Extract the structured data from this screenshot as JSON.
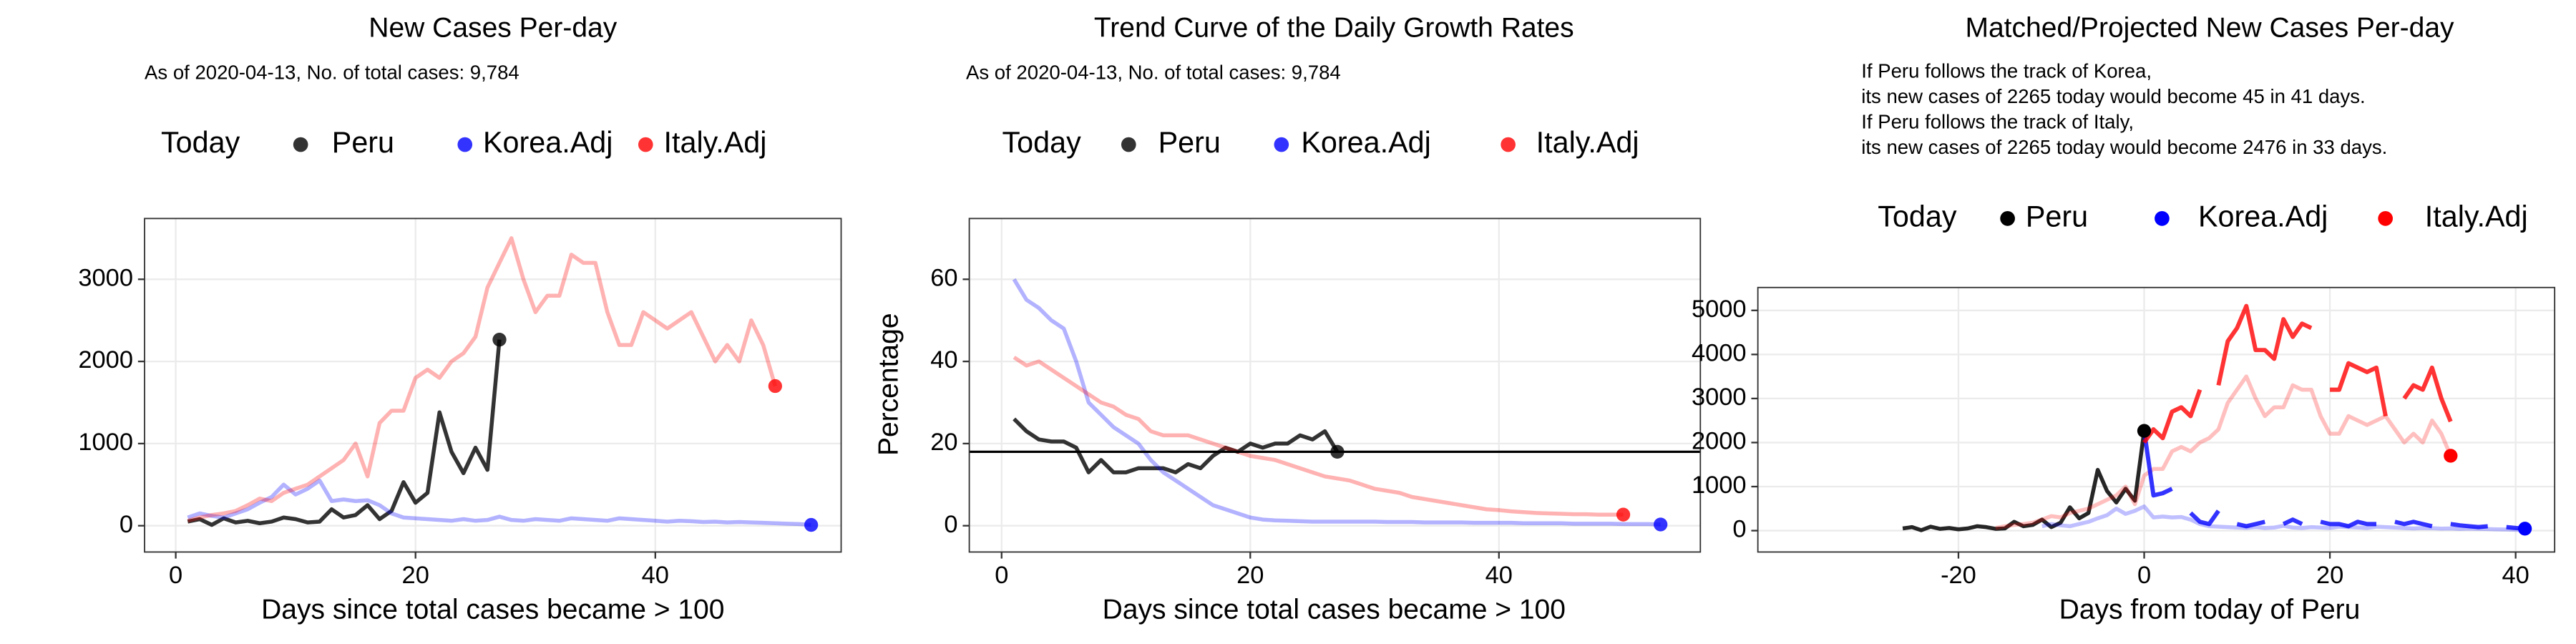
{
  "chart_data": [
    {
      "type": "line",
      "title": "New Cases Per-day",
      "subtitle": "As of 2020-04-13, No. of total cases: 9,784",
      "xlabel": "Days since total cases became > 100",
      "legend_title": "Today",
      "xlim": [
        -2.6,
        55.5
      ],
      "xticks": [
        0,
        20,
        40
      ],
      "ylim": [
        -320,
        3740
      ],
      "yticks": [
        0,
        1000,
        2000,
        3000
      ],
      "grid": true,
      "series": [
        {
          "name": "Peru",
          "color": "#000000",
          "opacity": 0.8,
          "marker_opacity": 0.8,
          "marker": "values",
          "x": [
            1,
            2,
            3,
            4,
            5,
            6,
            7,
            8,
            9,
            10,
            11,
            12,
            13,
            14,
            15,
            16,
            17,
            18,
            19,
            20,
            21,
            22,
            23,
            24,
            25,
            26,
            27
          ],
          "values": [
            50,
            80,
            10,
            90,
            40,
            60,
            30,
            50,
            100,
            80,
            40,
            50,
            200,
            100,
            130,
            250,
            80,
            180,
            530,
            280,
            400,
            1380,
            900,
            640,
            950,
            680,
            2265
          ]
        },
        {
          "name": "Korea.Adj",
          "color": "#0000ff",
          "opacity": 0.3,
          "marker_opacity": 0.8,
          "marker": "values",
          "x": [
            1,
            2,
            3,
            4,
            5,
            6,
            7,
            8,
            9,
            10,
            11,
            12,
            13,
            14,
            15,
            16,
            17,
            18,
            19,
            20,
            21,
            22,
            23,
            24,
            25,
            26,
            27,
            28,
            29,
            30,
            31,
            32,
            33,
            34,
            35,
            36,
            37,
            38,
            39,
            40,
            41,
            42,
            43,
            44,
            45,
            46,
            47,
            48,
            49,
            50,
            51,
            52,
            53
          ],
          "values": [
            100,
            150,
            120,
            100,
            150,
            200,
            280,
            350,
            500,
            380,
            450,
            550,
            300,
            320,
            300,
            310,
            250,
            150,
            100,
            90,
            80,
            70,
            60,
            80,
            60,
            70,
            110,
            70,
            60,
            80,
            70,
            60,
            90,
            80,
            70,
            60,
            90,
            80,
            70,
            60,
            50,
            60,
            55,
            45,
            50,
            40,
            45,
            40,
            35,
            30,
            25,
            20,
            10
          ]
        },
        {
          "name": "Italy.Adj",
          "color": "#ff0000",
          "opacity": 0.3,
          "marker_opacity": 0.8,
          "marker": "values",
          "x": [
            1,
            2,
            3,
            4,
            5,
            6,
            7,
            8,
            9,
            10,
            11,
            12,
            13,
            14,
            15,
            16,
            17,
            18,
            19,
            20,
            21,
            22,
            23,
            24,
            25,
            26,
            27,
            28,
            29,
            30,
            31,
            32,
            33,
            34,
            35,
            36,
            37,
            38,
            39,
            40,
            41,
            42,
            43,
            44,
            45,
            46,
            47,
            48,
            49,
            50
          ],
          "values": [
            60,
            100,
            130,
            150,
            180,
            250,
            330,
            300,
            400,
            450,
            500,
            600,
            700,
            800,
            1000,
            600,
            1250,
            1400,
            1400,
            1800,
            1900,
            1800,
            2000,
            2100,
            2300,
            2900,
            3200,
            3500,
            3000,
            2600,
            2800,
            2800,
            3300,
            3200,
            3200,
            2600,
            2200,
            2200,
            2600,
            2500,
            2400,
            2500,
            2600,
            2300,
            2000,
            2200,
            2000,
            2500,
            2200,
            1700
          ]
        }
      ]
    },
    {
      "type": "line",
      "title": "Trend Curve of the Daily Growth Rates",
      "subtitle": "As of 2020-04-13, No. of total cases: 9,784",
      "xlabel": "Days since total cases became > 100",
      "ylabel": "Percentage",
      "legend_title": "Today",
      "xlim": [
        -2.6,
        56.2
      ],
      "xticks": [
        0,
        20,
        40
      ],
      "ylim": [
        -6.4,
        74.8
      ],
      "yticks": [
        0,
        20,
        40,
        60
      ],
      "grid": true,
      "hline": 18,
      "series": [
        {
          "name": "Peru",
          "color": "#000000",
          "opacity": 0.8,
          "marker_opacity": 0.8,
          "marker": "values",
          "x": [
            1,
            2,
            3,
            4,
            5,
            6,
            7,
            8,
            9,
            10,
            11,
            12,
            13,
            14,
            15,
            16,
            17,
            18,
            19,
            20,
            21,
            22,
            23,
            24,
            25,
            26,
            27
          ],
          "values": [
            26,
            23,
            21,
            20.5,
            20.5,
            19,
            13,
            16,
            13,
            13,
            14,
            14,
            14,
            13,
            15,
            14,
            17,
            19,
            18,
            20,
            19,
            20,
            20,
            22,
            21,
            23,
            18
          ]
        },
        {
          "name": "Korea.Adj",
          "color": "#0000ff",
          "opacity": 0.3,
          "marker_opacity": 0.8,
          "marker": "values",
          "x": [
            1,
            2,
            3,
            4,
            5,
            6,
            7,
            8,
            9,
            10,
            11,
            12,
            13,
            14,
            15,
            16,
            17,
            18,
            19,
            20,
            21,
            22,
            23,
            24,
            25,
            26,
            27,
            28,
            29,
            30,
            31,
            32,
            33,
            34,
            35,
            36,
            37,
            38,
            39,
            40,
            41,
            42,
            43,
            44,
            45,
            46,
            47,
            48,
            49,
            50,
            51,
            52,
            53
          ],
          "values": [
            60,
            55,
            53,
            50,
            48,
            40,
            30,
            27,
            24,
            22,
            20,
            16,
            13,
            11,
            9,
            7,
            5,
            4,
            3,
            2,
            1.5,
            1.3,
            1.2,
            1.1,
            1,
            1,
            1,
            1,
            1,
            1,
            0.9,
            0.9,
            0.9,
            0.8,
            0.8,
            0.8,
            0.8,
            0.7,
            0.7,
            0.7,
            0.7,
            0.6,
            0.6,
            0.6,
            0.6,
            0.5,
            0.5,
            0.5,
            0.5,
            0.4,
            0.4,
            0.4,
            0.3
          ]
        },
        {
          "name": "Italy.Adj",
          "color": "#ff0000",
          "opacity": 0.3,
          "marker_opacity": 0.8,
          "marker": "values",
          "x": [
            1,
            2,
            3,
            4,
            5,
            6,
            7,
            8,
            9,
            10,
            11,
            12,
            13,
            14,
            15,
            16,
            17,
            18,
            19,
            20,
            21,
            22,
            23,
            24,
            25,
            26,
            27,
            28,
            29,
            30,
            31,
            32,
            33,
            34,
            35,
            36,
            37,
            38,
            39,
            40,
            41,
            42,
            43,
            44,
            45,
            46,
            47,
            48,
            49,
            50
          ],
          "values": [
            41,
            39,
            40,
            38,
            36,
            34,
            32,
            30,
            29,
            27,
            26,
            23,
            22,
            22,
            22,
            21,
            20,
            19,
            18,
            17,
            16.5,
            16,
            15,
            14,
            13,
            12,
            11.5,
            11,
            10,
            9,
            8.5,
            8,
            7,
            6.5,
            6,
            5.5,
            5,
            4.5,
            4,
            3.8,
            3.5,
            3.3,
            3.1,
            3,
            2.9,
            2.8,
            2.8,
            2.7,
            2.7,
            2.7
          ]
        }
      ]
    },
    {
      "type": "line",
      "title": "Matched/Projected New Cases Per-day",
      "annotations": [
        "If Peru follows the track of Korea,",
        "its new cases of 2265 today would become 45 in 41 days.",
        "If Peru follows the track of Italy,",
        "its new cases of 2265 today would become 2476 in 33 days."
      ],
      "xlabel": "Days from today of Peru",
      "legend_title": "Today",
      "xlim": [
        -41.6,
        44.2
      ],
      "xticks": [
        -20,
        0,
        20,
        40
      ],
      "ylim": [
        -485,
        5520
      ],
      "yticks": [
        0,
        1000,
        2000,
        3000,
        4000,
        5000
      ],
      "grid": true,
      "series": [
        {
          "name": "Peru",
          "color": "#000000",
          "opacity": 0.85,
          "marker_opacity": 1,
          "marker": "values",
          "x": [
            -26,
            -25,
            -24,
            -23,
            -22,
            -21,
            -20,
            -19,
            -18,
            -17,
            -16,
            -15,
            -14,
            -13,
            -12,
            -11,
            -10,
            -9,
            -8,
            -7,
            -6,
            -5,
            -4,
            -3,
            -2,
            -1,
            0
          ],
          "values": [
            50,
            80,
            10,
            90,
            40,
            60,
            30,
            50,
            100,
            80,
            40,
            50,
            200,
            100,
            130,
            250,
            80,
            180,
            530,
            280,
            400,
            1380,
            900,
            640,
            950,
            680,
            2265
          ]
        },
        {
          "name": "Korea.Adj",
          "color": "#0000ff",
          "opacity": 0.25,
          "marker_opacity": 1,
          "marker": "projection",
          "x": [
            -11,
            -10,
            -9,
            -8,
            -7,
            -6,
            -5,
            -4,
            -3,
            -2,
            -1,
            0,
            1,
            2,
            3,
            4,
            5,
            6,
            7,
            8,
            9,
            10,
            11,
            12,
            13,
            14,
            15,
            16,
            17,
            18,
            19,
            20,
            21,
            22,
            23,
            24,
            25,
            26,
            27,
            28,
            29,
            30,
            31,
            32,
            33,
            34,
            35,
            36,
            37,
            38,
            39,
            40,
            41
          ],
          "values": [
            100,
            150,
            120,
            100,
            150,
            200,
            280,
            350,
            500,
            380,
            450,
            550,
            300,
            320,
            300,
            310,
            250,
            150,
            100,
            90,
            80,
            70,
            60,
            80,
            60,
            70,
            110,
            70,
            60,
            80,
            70,
            60,
            90,
            80,
            70,
            60,
            90,
            80,
            70,
            60,
            50,
            60,
            55,
            45,
            50,
            40,
            45,
            40,
            35,
            30,
            25,
            20,
            10
          ],
          "projection_x": [
            0,
            1,
            2,
            3,
            4,
            5,
            6,
            7,
            8,
            9,
            10,
            11,
            12,
            13,
            14,
            15,
            16,
            17,
            18,
            19,
            20,
            21,
            22,
            23,
            24,
            25,
            26,
            27,
            28,
            29,
            30,
            31,
            32,
            33,
            34,
            35,
            36,
            37,
            38,
            39,
            40,
            41
          ],
          "projection": [
            2265,
            800,
            850,
            950,
            null,
            400,
            200,
            150,
            450,
            null,
            150,
            100,
            150,
            200,
            null,
            150,
            250,
            150,
            null,
            200,
            150,
            150,
            100,
            200,
            150,
            150,
            null,
            200,
            150,
            200,
            150,
            100,
            null,
            150,
            120,
            100,
            80,
            100,
            null,
            80,
            60,
            45
          ]
        },
        {
          "name": "Italy.Adj",
          "color": "#ff0000",
          "opacity": 0.25,
          "marker_opacity": 1,
          "marker": "values",
          "x": [
            -16,
            -15,
            -14,
            -13,
            -12,
            -11,
            -10,
            -9,
            -8,
            -7,
            -6,
            -5,
            -4,
            -3,
            -2,
            -1,
            0,
            1,
            2,
            3,
            4,
            5,
            6,
            7,
            8,
            9,
            10,
            11,
            12,
            13,
            14,
            15,
            16,
            17,
            18,
            19,
            20,
            21,
            22,
            23,
            24,
            25,
            26,
            27,
            28,
            29,
            30,
            31,
            32,
            33
          ],
          "values": [
            60,
            100,
            130,
            150,
            180,
            250,
            330,
            300,
            400,
            450,
            500,
            600,
            700,
            800,
            1000,
            600,
            1250,
            1400,
            1400,
            1800,
            1900,
            1800,
            2000,
            2100,
            2300,
            2900,
            3200,
            3500,
            3000,
            2600,
            2800,
            2800,
            3300,
            3200,
            3200,
            2600,
            2200,
            2200,
            2600,
            2500,
            2400,
            2500,
            2600,
            2300,
            2000,
            2200,
            2000,
            2500,
            2200,
            1700
          ],
          "projection_x": [
            0,
            1,
            2,
            3,
            4,
            5,
            6,
            7,
            8,
            9,
            10,
            11,
            12,
            13,
            14,
            15,
            16,
            17,
            18,
            19,
            20,
            21,
            22,
            23,
            24,
            25,
            26,
            27,
            28,
            29,
            30,
            31,
            32,
            33
          ],
          "projection": [
            2000,
            2300,
            2100,
            2700,
            2800,
            2600,
            3200,
            null,
            3300,
            4300,
            4600,
            5100,
            4100,
            4100,
            3900,
            4800,
            4400,
            4700,
            4600,
            null,
            3200,
            3200,
            3800,
            3700,
            3600,
            3700,
            2600,
            null,
            3000,
            3300,
            3200,
            3700,
            3000,
            2476
          ]
        }
      ]
    }
  ]
}
